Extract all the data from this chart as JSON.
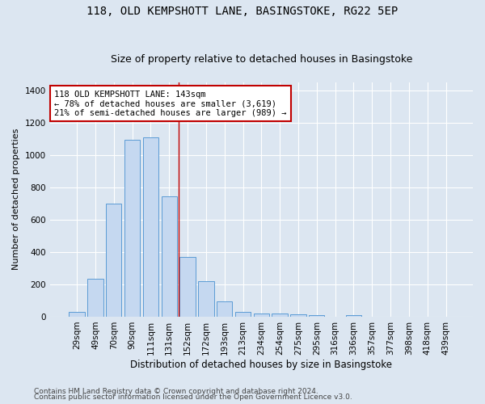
{
  "title": "118, OLD KEMPSHOTT LANE, BASINGSTOKE, RG22 5EP",
  "subtitle": "Size of property relative to detached houses in Basingstoke",
  "xlabel": "Distribution of detached houses by size in Basingstoke",
  "ylabel": "Number of detached properties",
  "categories": [
    "29sqm",
    "49sqm",
    "70sqm",
    "90sqm",
    "111sqm",
    "131sqm",
    "152sqm",
    "172sqm",
    "193sqm",
    "213sqm",
    "234sqm",
    "254sqm",
    "275sqm",
    "295sqm",
    "316sqm",
    "336sqm",
    "357sqm",
    "377sqm",
    "398sqm",
    "418sqm",
    "439sqm"
  ],
  "values": [
    30,
    235,
    700,
    1095,
    1110,
    745,
    370,
    220,
    95,
    30,
    18,
    20,
    15,
    10,
    0,
    10,
    0,
    0,
    0,
    0,
    0
  ],
  "bar_color": "#c5d8f0",
  "bar_edge_color": "#5b9bd5",
  "vline_x": 5.5,
  "vline_color": "#c00000",
  "annotation_text": "118 OLD KEMPSHOTT LANE: 143sqm\n← 78% of detached houses are smaller (3,619)\n21% of semi-detached houses are larger (989) →",
  "annotation_box_color": "#ffffff",
  "annotation_box_edge": "#c00000",
  "ylim": [
    0,
    1450
  ],
  "yticks": [
    0,
    200,
    400,
    600,
    800,
    1000,
    1200,
    1400
  ],
  "bg_color": "#dce6f1",
  "plot_bg_color": "#dce6f1",
  "footer_line1": "Contains HM Land Registry data © Crown copyright and database right 2024.",
  "footer_line2": "Contains public sector information licensed under the Open Government Licence v3.0.",
  "title_fontsize": 10,
  "subtitle_fontsize": 9,
  "xlabel_fontsize": 8.5,
  "ylabel_fontsize": 8,
  "tick_fontsize": 7.5,
  "annotation_fontsize": 7.5,
  "footer_fontsize": 6.5
}
